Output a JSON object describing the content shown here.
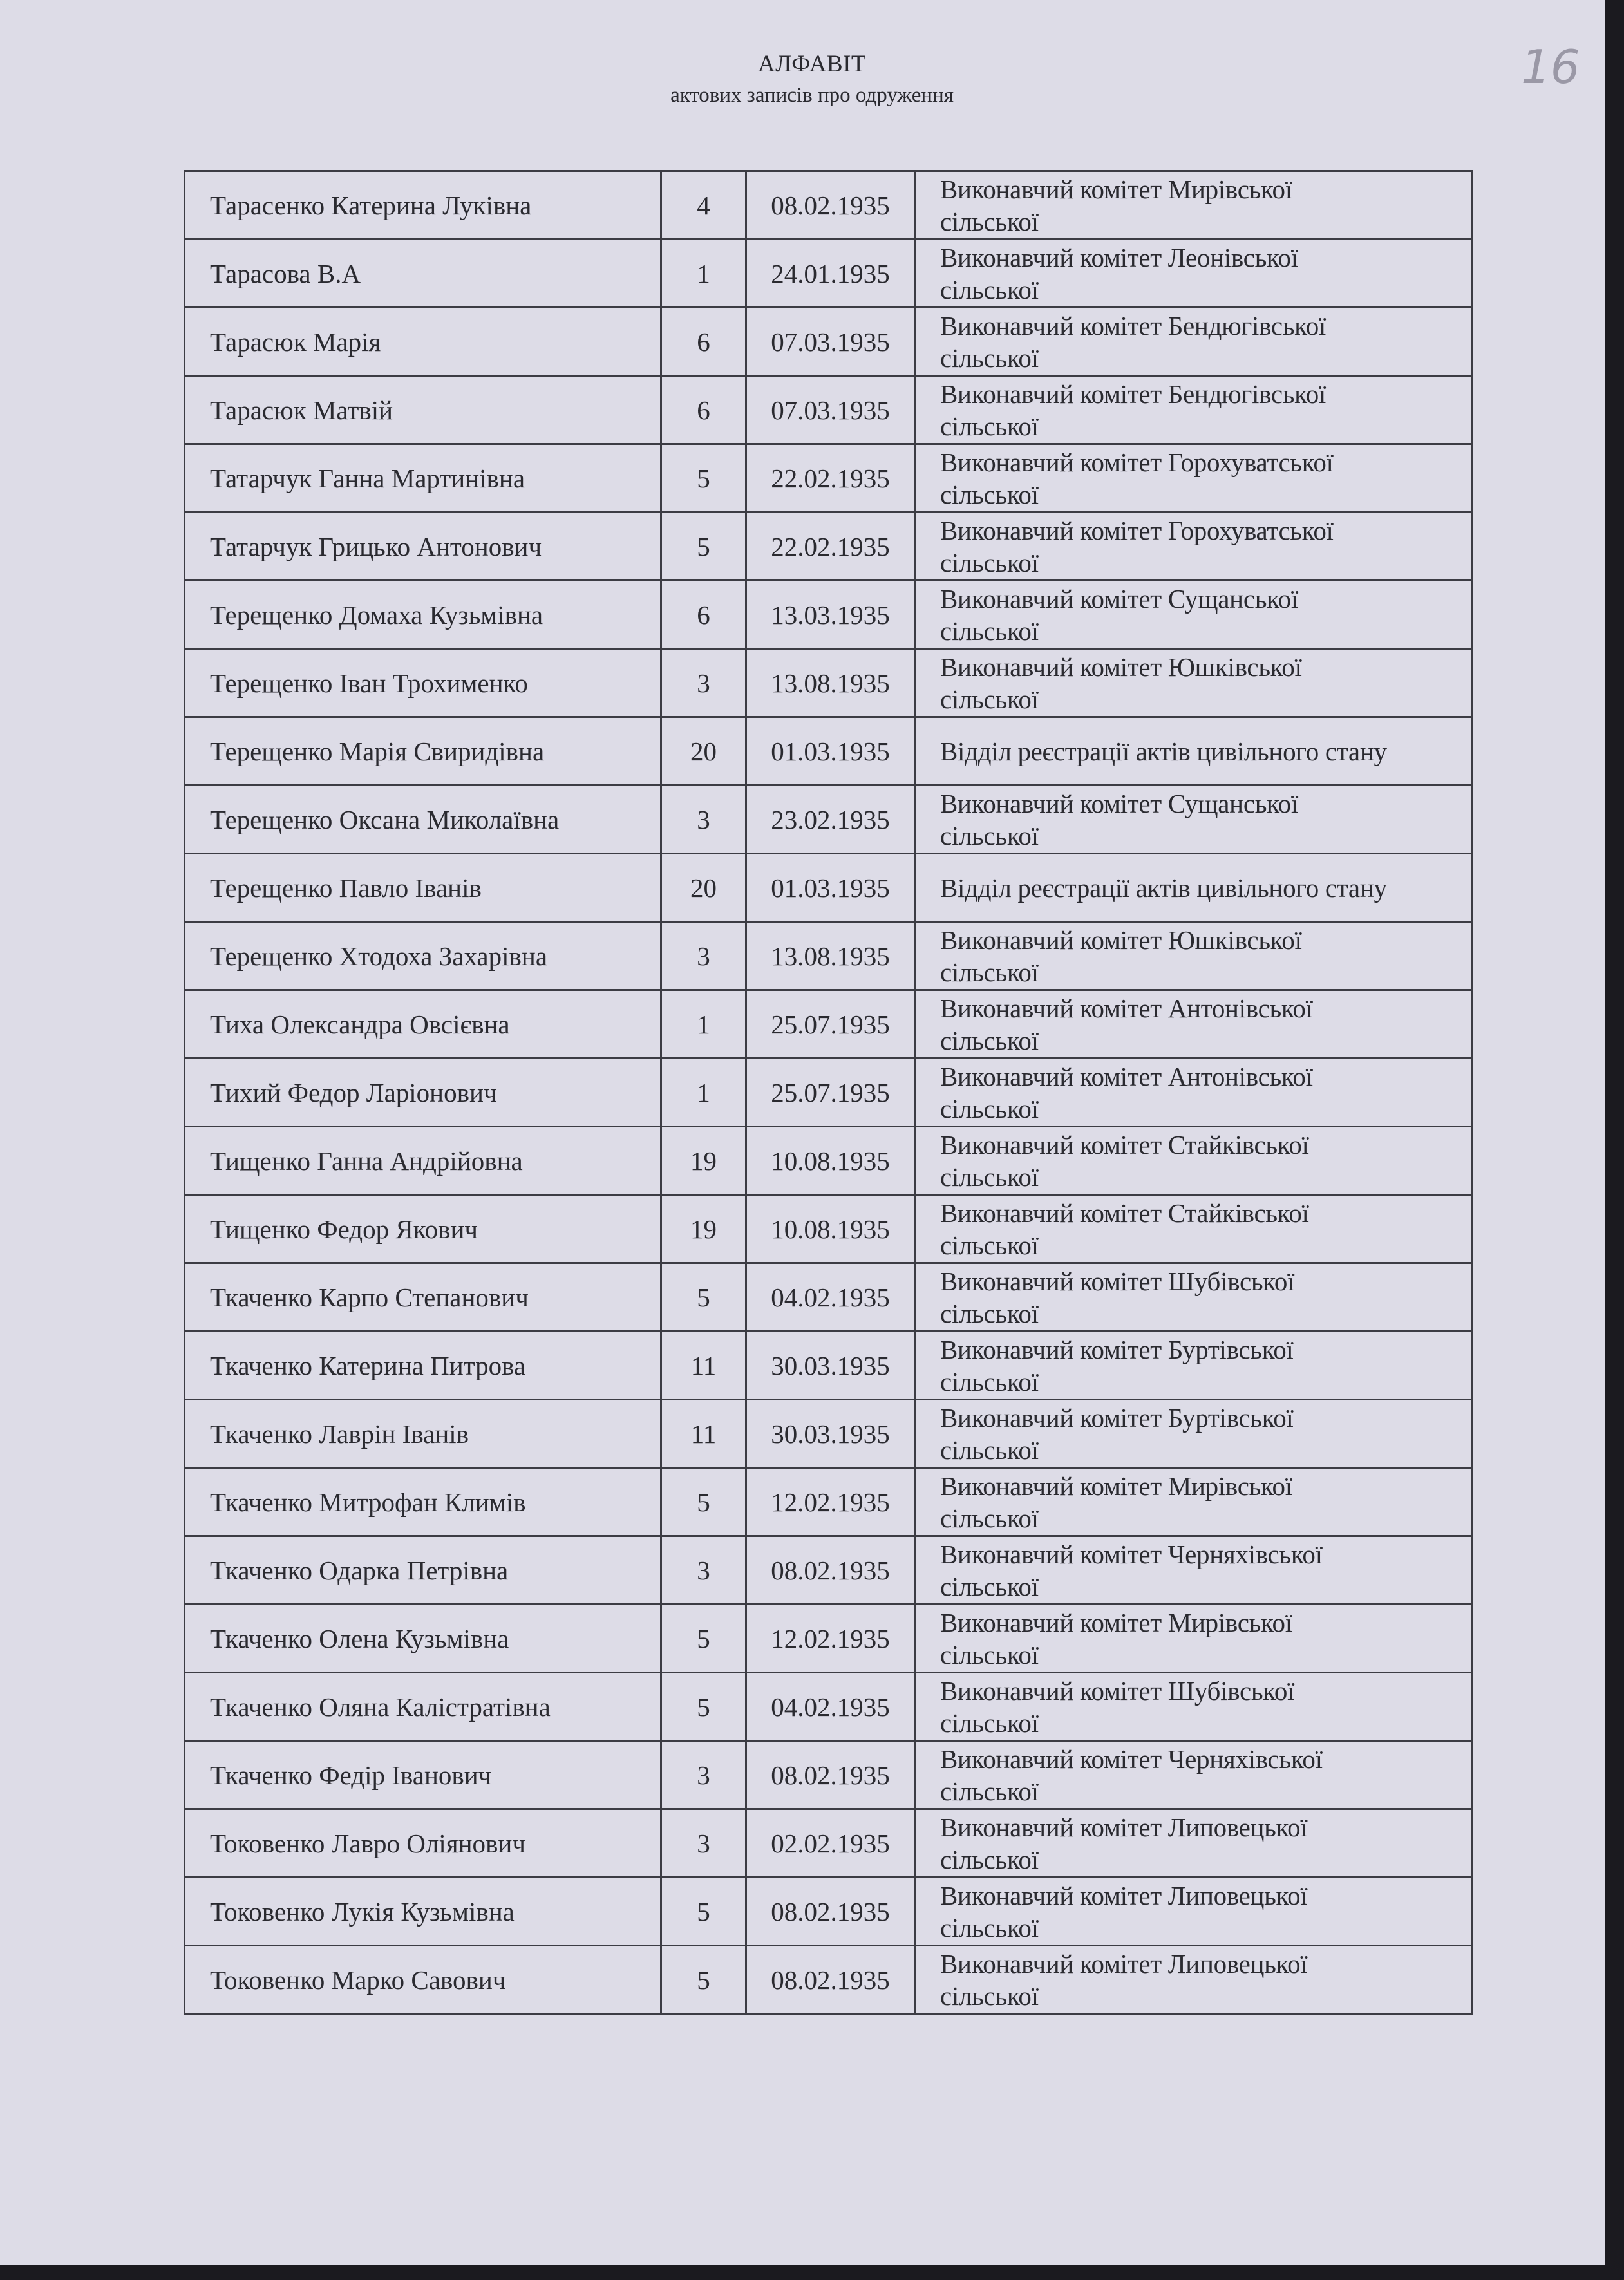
{
  "header": {
    "title": "АЛФАВІТ",
    "subtitle": "актових записів про одруження",
    "page_number": "16"
  },
  "rows": [
    {
      "name": "Тарасенко Катерина Луківна",
      "number": "4",
      "date": "08.02.1935",
      "office": "Виконавчий комітет Мирівської сільської"
    },
    {
      "name": "Тарасова В.А",
      "number": "1",
      "date": "24.01.1935",
      "office": "Виконавчий комітет Леонівської сільської"
    },
    {
      "name": "Тарасюк Марія",
      "number": "6",
      "date": "07.03.1935",
      "office": "Виконавчий комітет Бендюгівської сільської"
    },
    {
      "name": "Тарасюк Матвій",
      "number": "6",
      "date": "07.03.1935",
      "office": "Виконавчий комітет Бендюгівської сільської"
    },
    {
      "name": "Татарчук Ганна Мартинівна",
      "number": "5",
      "date": "22.02.1935",
      "office": "Виконавчий комітет Горохуватської сільської"
    },
    {
      "name": "Татарчук Грицько Антонович",
      "number": "5",
      "date": "22.02.1935",
      "office": "Виконавчий комітет Горохуватської сільської"
    },
    {
      "name": "Терещенко Домаха Кузьмівна",
      "number": "6",
      "date": "13.03.1935",
      "office": "Виконавчий комітет Сущанської сільської"
    },
    {
      "name": "Терещенко Іван Трохименко",
      "number": "3",
      "date": "13.08.1935",
      "office": "Виконавчий комітет Юшківської сільської"
    },
    {
      "name": "Терещенко Марія Свиридівна",
      "number": "20",
      "date": "01.03.1935",
      "office": "Відділ реєстрації актів цивільного стану"
    },
    {
      "name": "Терещенко Оксана Миколаївна",
      "number": "3",
      "date": "23.02.1935",
      "office": "Виконавчий комітет Сущанської сільської"
    },
    {
      "name": "Терещенко Павло Іванів",
      "number": "20",
      "date": "01.03.1935",
      "office": "Відділ реєстрації актів цивільного стану"
    },
    {
      "name": "Терещенко Хтодоха Захарівна",
      "number": "3",
      "date": "13.08.1935",
      "office": "Виконавчий комітет Юшківської сільської"
    },
    {
      "name": "Тиха Олександра Овсієвна",
      "number": "1",
      "date": "25.07.1935",
      "office": "Виконавчий комітет Антонівської сільської"
    },
    {
      "name": "Тихий Федор Ларіонович",
      "number": "1",
      "date": "25.07.1935",
      "office": "Виконавчий комітет Антонівської сільської"
    },
    {
      "name": "Тищенко Ганна Андрійовна",
      "number": "19",
      "date": "10.08.1935",
      "office": "Виконавчий комітет Стайківської сільської"
    },
    {
      "name": "Тищенко Федор Якович",
      "number": "19",
      "date": "10.08.1935",
      "office": "Виконавчий комітет Стайківської сільської"
    },
    {
      "name": "Ткаченко Карпо Степанович",
      "number": "5",
      "date": "04.02.1935",
      "office": "Виконавчий комітет Шубівської сільської"
    },
    {
      "name": "Ткаченко Катерина Питрова",
      "number": "11",
      "date": "30.03.1935",
      "office": "Виконавчий комітет Буртівської сільської"
    },
    {
      "name": "Ткаченко Лаврін Іванів",
      "number": "11",
      "date": "30.03.1935",
      "office": "Виконавчий комітет Буртівської сільської"
    },
    {
      "name": "Ткаченко Митрофан Климів",
      "number": "5",
      "date": "12.02.1935",
      "office": "Виконавчий комітет Мирівської сільської"
    },
    {
      "name": "Ткаченко Одарка Петрівна",
      "number": "3",
      "date": "08.02.1935",
      "office": "Виконавчий комітет Черняхівської сільської"
    },
    {
      "name": "Ткаченко Олена Кузьмівна",
      "number": "5",
      "date": "12.02.1935",
      "office": "Виконавчий комітет Мирівської сільської"
    },
    {
      "name": "Ткаченко Оляна Калістратівна",
      "number": "5",
      "date": "04.02.1935",
      "office": "Виконавчий комітет Шубівської сільської"
    },
    {
      "name": "Ткаченко Федір Іванович",
      "number": "3",
      "date": "08.02.1935",
      "office": "Виконавчий комітет Черняхівської сільської"
    },
    {
      "name": "Токовенко Лавро Оліянович",
      "number": "3",
      "date": "02.02.1935",
      "office": "Виконавчий комітет Липовецької сільської"
    },
    {
      "name": "Токовенко Лукія Кузьмівна",
      "number": "5",
      "date": "08.02.1935",
      "office": "Виконавчий комітет Липовецької сільської"
    },
    {
      "name": "Токовенко Марко Савович",
      "number": "5",
      "date": "08.02.1935",
      "office": "Виконавчий комітет Липовецької сільської"
    }
  ]
}
